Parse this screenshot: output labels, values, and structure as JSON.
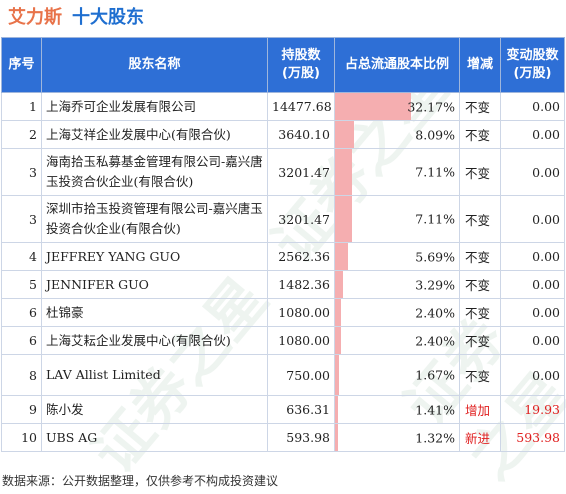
{
  "header": {
    "company": "艾力斯",
    "title": "十大股东"
  },
  "table": {
    "columns": [
      "序号",
      "股东名称",
      "持股数\n(万股)",
      "占总流通股本比例",
      "增减",
      "变动股数\n(万股)"
    ],
    "rows": [
      {
        "rank": "1",
        "name": "上海乔可企业发展有限公司",
        "shares": "14477.68",
        "ratio": "32.17%",
        "ratio_value": 32.17,
        "change": "不变",
        "delta": "0.00"
      },
      {
        "rank": "2",
        "name": "上海艾祥企业发展中心(有限合伙)",
        "shares": "3640.10",
        "ratio": "8.09%",
        "ratio_value": 8.09,
        "change": "不变",
        "delta": "0.00"
      },
      {
        "rank": "3",
        "name": "海南拾玉私募基金管理有限公司-嘉兴唐玉投资合伙企业(有限合伙)",
        "shares": "3201.47",
        "ratio": "7.11%",
        "ratio_value": 7.11,
        "change": "不变",
        "delta": "0.00"
      },
      {
        "rank": "3",
        "name": "深圳市拾玉投资管理有限公司-嘉兴唐玉投资合伙企业(有限合伙)",
        "shares": "3201.47",
        "ratio": "7.11%",
        "ratio_value": 7.11,
        "change": "不变",
        "delta": "0.00"
      },
      {
        "rank": "4",
        "name": "JEFFREY YANG GUO",
        "shares": "2562.36",
        "ratio": "5.69%",
        "ratio_value": 5.69,
        "change": "不变",
        "delta": "0.00"
      },
      {
        "rank": "5",
        "name": "JENNIFER GUO",
        "shares": "1482.36",
        "ratio": "3.29%",
        "ratio_value": 3.29,
        "change": "不变",
        "delta": "0.00"
      },
      {
        "rank": "6",
        "name": "杜锦豪",
        "shares": "1080.00",
        "ratio": "2.40%",
        "ratio_value": 2.4,
        "change": "不变",
        "delta": "0.00"
      },
      {
        "rank": "6",
        "name": "上海艾耘企业发展中心(有限合伙)",
        "shares": "1080.00",
        "ratio": "2.40%",
        "ratio_value": 2.4,
        "change": "不变",
        "delta": "0.00"
      },
      {
        "rank": "8",
        "name": "LAV Allist Limited",
        "shares": "750.00",
        "ratio": "1.67%",
        "ratio_value": 1.67,
        "change": "不变",
        "delta": "0.00"
      },
      {
        "rank": "9",
        "name": "陈小发",
        "shares": "636.31",
        "ratio": "1.41%",
        "ratio_value": 1.41,
        "change": "增加",
        "delta": "19.93"
      },
      {
        "rank": "10",
        "name": "UBS AG",
        "shares": "593.98",
        "ratio": "1.32%",
        "ratio_value": 1.32,
        "change": "新进",
        "delta": "593.98"
      }
    ]
  },
  "footer": "数据来源：公开数据整理，仅供参考不构成投资建议",
  "watermark": "证券之星",
  "colors": {
    "header_bg": "#2e6fd6",
    "bar": "#f5aeb0",
    "company": "#e8734a",
    "title": "#1f6fd0",
    "increase": "#e02020"
  }
}
